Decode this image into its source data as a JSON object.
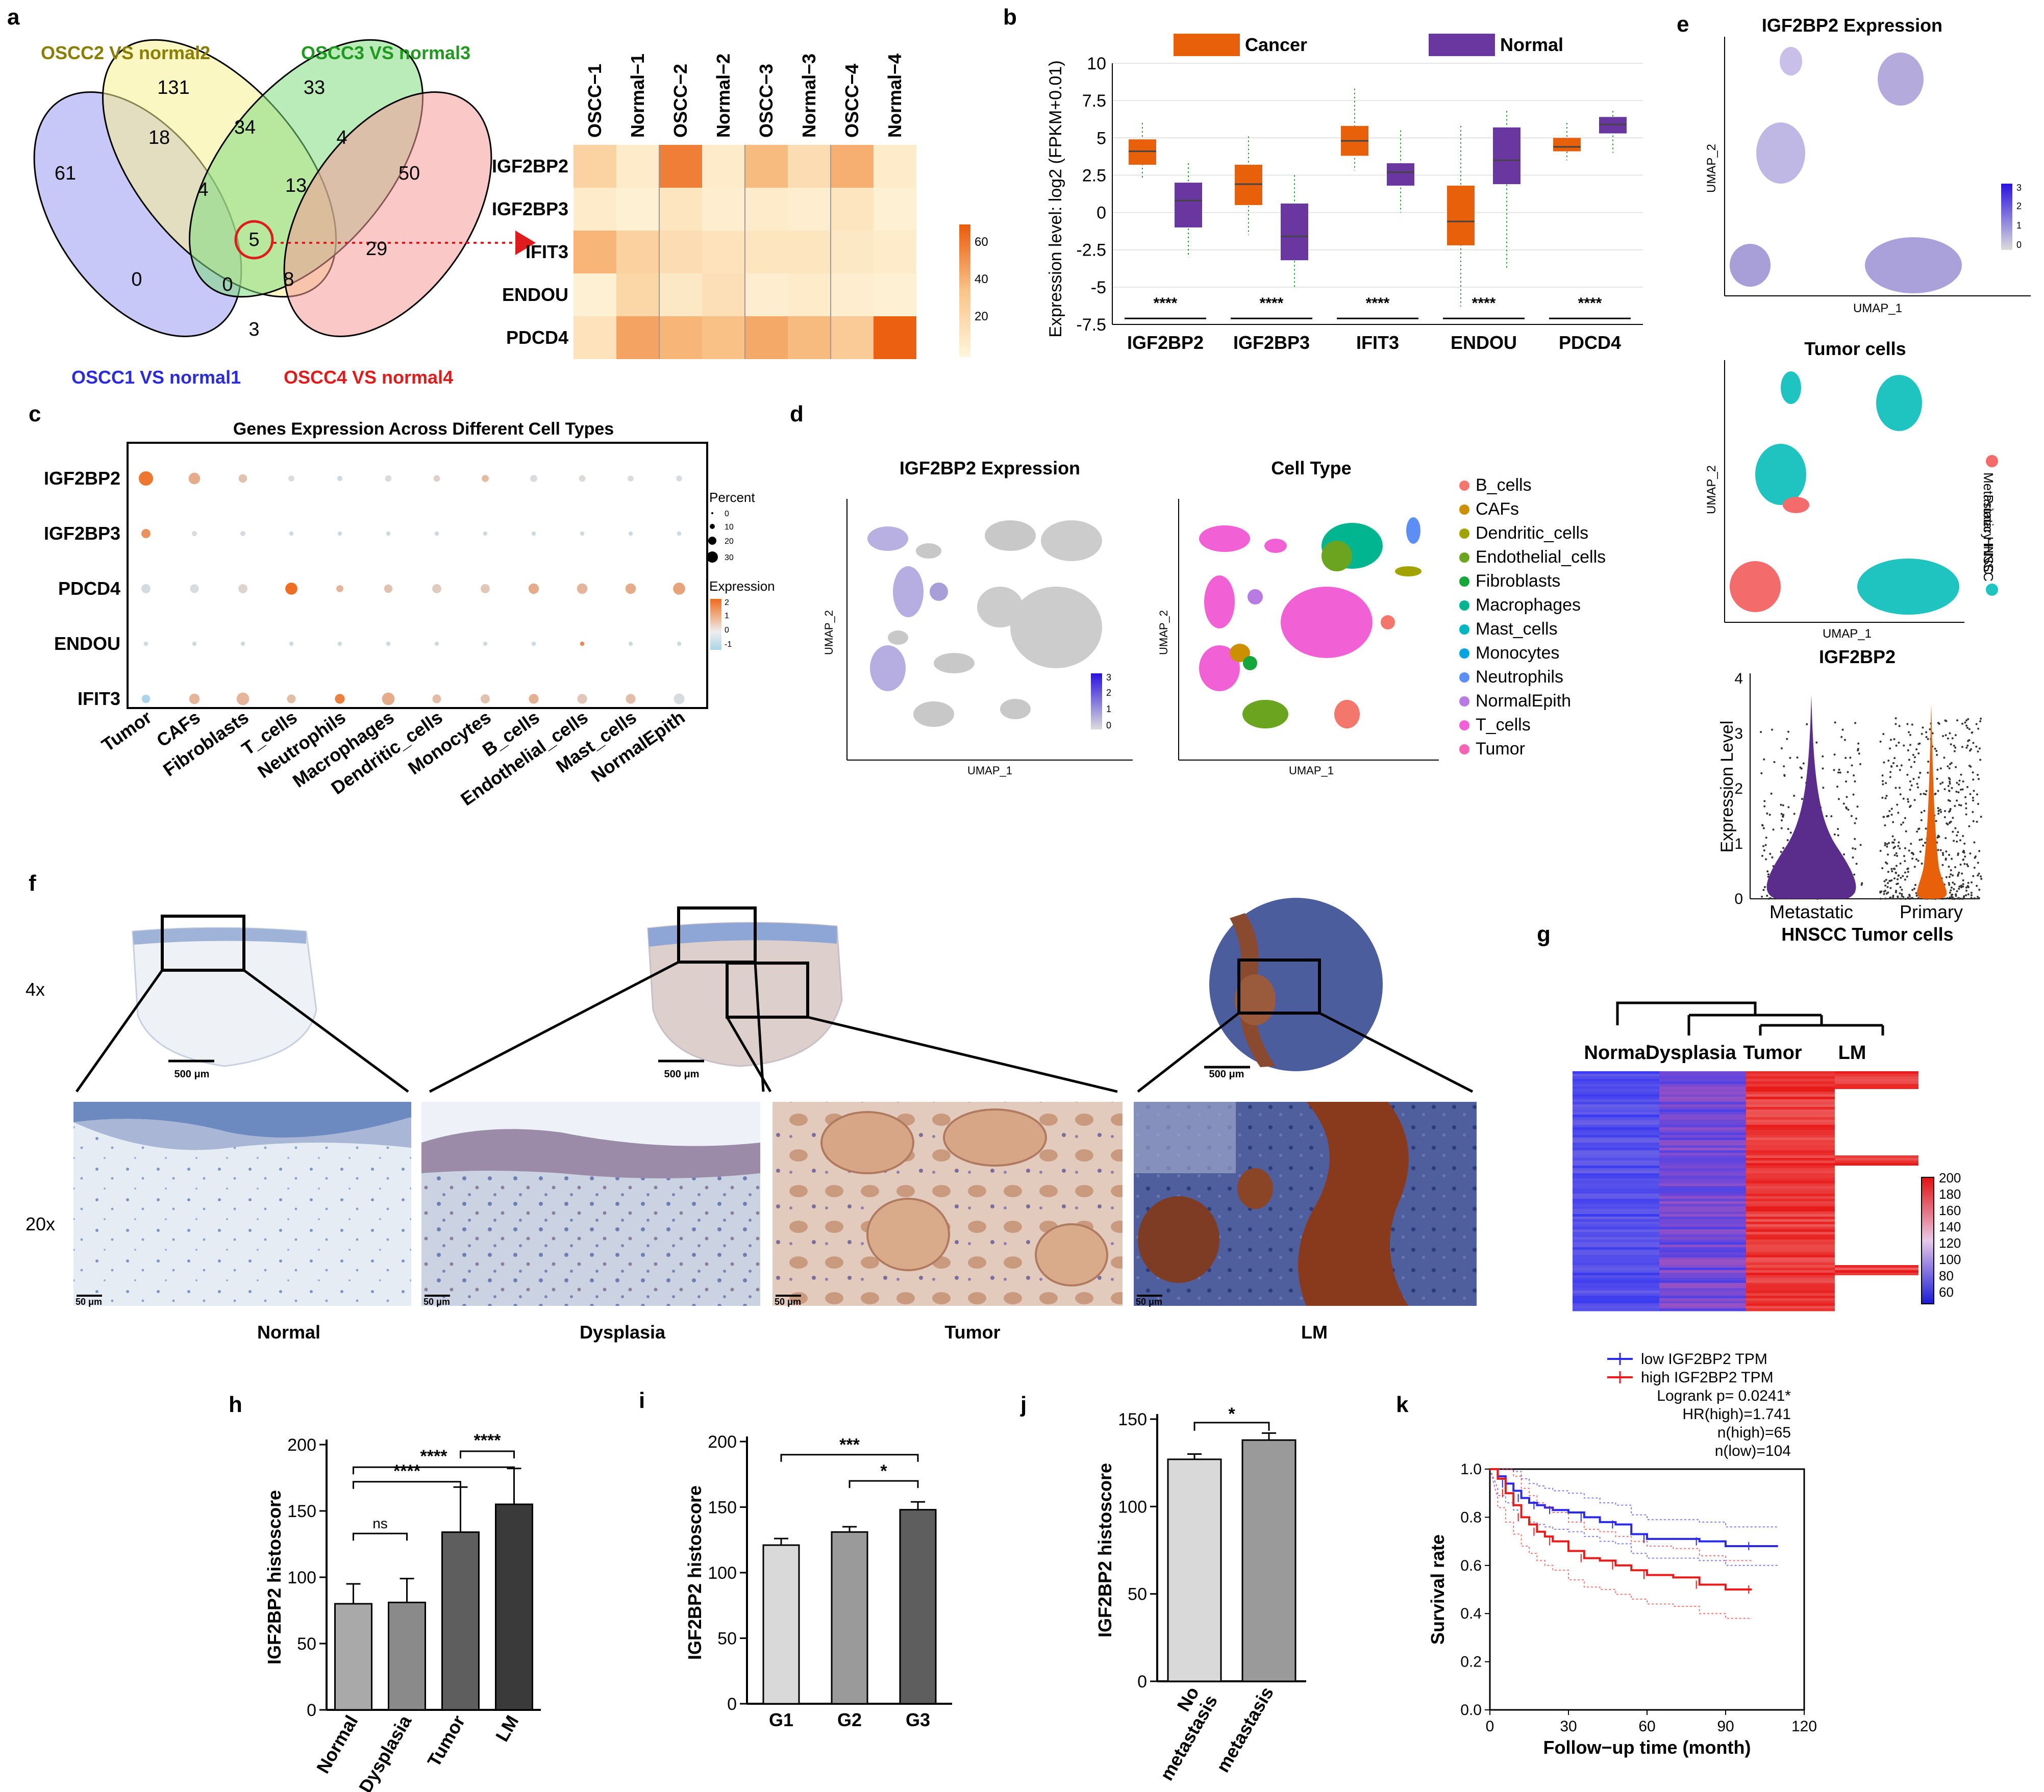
{
  "panel_labels": [
    "a",
    "b",
    "c",
    "d",
    "e",
    "f",
    "g",
    "h",
    "i",
    "j",
    "k"
  ],
  "panel_a": {
    "venn": {
      "sets": [
        "OSCC1 VS normal1",
        "OSCC2 VS normal2",
        "OSCC3 VS normal3",
        "OSCC4 VS normal4"
      ],
      "set_colors": [
        "#2b2bdc",
        "#8a7d00",
        "#1f9a1f",
        "#e01b1b"
      ],
      "counts": [
        "61",
        "131",
        "33",
        "50",
        "18",
        "34",
        "4",
        "4",
        "13",
        "5",
        "0",
        "0",
        "8",
        "29",
        "3"
      ]
    },
    "heatmap": {
      "columns": [
        "OSCC−1",
        "Normal−1",
        "OSCC−2",
        "Normal−2",
        "OSCC−3",
        "Normal−3",
        "OSCC−4",
        "Normal−4"
      ],
      "rows": [
        "IGF2BP2",
        "IGF2BP3",
        "IFIT3",
        "ENDOU",
        "PDCD4"
      ],
      "values": [
        [
          25,
          8,
          58,
          8,
          38,
          18,
          42,
          8
        ],
        [
          8,
          4,
          12,
          6,
          8,
          6,
          12,
          4
        ],
        [
          40,
          26,
          18,
          14,
          12,
          12,
          10,
          8
        ],
        [
          4,
          22,
          10,
          16,
          6,
          8,
          6,
          4
        ],
        [
          14,
          46,
          40,
          36,
          44,
          38,
          30,
          68
        ]
      ],
      "legend_ticks": [
        "60",
        "40",
        "20"
      ]
    }
  },
  "chart_data": [
    {
      "type": "box",
      "id": "b",
      "legend": [
        "Cancer",
        "Normal"
      ],
      "colors": [
        "#e8600a",
        "#6a36a0"
      ],
      "categories": [
        "IGF2BP2",
        "IGF2BP3",
        "IFIT3",
        "ENDOU",
        "PDCD4"
      ],
      "ylabel": "Expression level: log2 (FPKM+0.01)",
      "ylim": [
        -7.5,
        10
      ],
      "yticks": [
        "-7.5",
        "-5",
        "-2.5",
        "0",
        "2.5",
        "5",
        "7.5",
        "10"
      ],
      "series": [
        {
          "name": "Cancer",
          "boxes": [
            [
              2.3,
              3.2,
              4.1,
              4.9,
              6.0
            ],
            [
              -1.5,
              0.5,
              1.9,
              3.2,
              5.1
            ],
            [
              2.8,
              3.8,
              4.8,
              5.8,
              8.3
            ],
            [
              -6.3,
              -2.2,
              -0.6,
              1.8,
              5.8
            ],
            [
              3.5,
              4.1,
              4.4,
              5.0,
              6.0
            ]
          ]
        },
        {
          "name": "Normal",
          "boxes": [
            [
              -3.0,
              -1.0,
              0.8,
              2.0,
              3.3
            ],
            [
              -5.0,
              -3.2,
              -1.6,
              0.6,
              2.5
            ],
            [
              0.0,
              1.8,
              2.7,
              3.3,
              5.5
            ],
            [
              -3.8,
              1.9,
              3.5,
              5.7,
              6.8
            ],
            [
              4.0,
              5.3,
              5.9,
              6.4,
              6.8
            ]
          ]
        }
      ],
      "significance": [
        "****",
        "****",
        "****",
        "****",
        "****"
      ]
    },
    {
      "type": "dotplot",
      "id": "c",
      "title": "Genes Expression Across Different Cell Types",
      "genes": [
        "IGF2BP2",
        "IGF2BP3",
        "PDCD4",
        "ENDOU",
        "IFIT3"
      ],
      "cell_types": [
        "Tumor",
        "CAFs",
        "Fibroblasts",
        "T_cells",
        "Neutrophils",
        "Macrophages",
        "Dendritic_cells",
        "Monocytes",
        "B_cells",
        "Endothelial_cells",
        "Mast_cells",
        "NormalEpith"
      ],
      "percent": [
        [
          30,
          18,
          8,
          3,
          2,
          4,
          4,
          5,
          5,
          4,
          3,
          3
        ],
        [
          10,
          2,
          2,
          1,
          1,
          1,
          1,
          1,
          1,
          1,
          1,
          1
        ],
        [
          10,
          9,
          10,
          20,
          5,
          8,
          10,
          10,
          14,
          14,
          14,
          20
        ],
        [
          1,
          1,
          1,
          1,
          1,
          1,
          1,
          1,
          1,
          1,
          1,
          1
        ],
        [
          8,
          14,
          22,
          9,
          12,
          22,
          9,
          10,
          12,
          12,
          12,
          15
        ]
      ],
      "expression": [
        [
          2.2,
          1.0,
          0.5,
          -0.3,
          -0.5,
          -0.2,
          0.2,
          0.7,
          -0.2,
          0.0,
          -0.3,
          -0.3
        ],
        [
          1.6,
          -0.2,
          -0.3,
          -0.5,
          -0.5,
          -0.5,
          -0.5,
          -0.5,
          -0.5,
          -0.5,
          -0.5,
          -0.5
        ],
        [
          -0.4,
          -0.2,
          0.1,
          2.4,
          0.8,
          0.5,
          0.3,
          0.4,
          1.0,
          0.8,
          1.0,
          1.2
        ],
        [
          -0.5,
          -0.5,
          -0.5,
          -0.5,
          -0.5,
          -0.5,
          -0.5,
          -0.5,
          -0.5,
          1.8,
          -0.5,
          -0.5
        ],
        [
          -1.4,
          0.8,
          0.8,
          0.6,
          2.0,
          1.0,
          0.6,
          0.5,
          0.9,
          0.4,
          0.6,
          -0.3
        ]
      ],
      "legend_percent_title": "Percent",
      "legend_percent": [
        "0",
        "10",
        "20",
        "30"
      ],
      "legend_expr_title": "Expression",
      "legend_expr": [
        "2",
        "1",
        "0",
        "-1"
      ]
    },
    {
      "type": "bar",
      "id": "h",
      "categories": [
        "Normal",
        "Dysplasia",
        "Tumor",
        "LM"
      ],
      "values": [
        80,
        81,
        134,
        155
      ],
      "errors": [
        15,
        18,
        34,
        27
      ],
      "ylabel": "IGF2BP2 histoscore",
      "ylim": [
        0,
        200
      ],
      "yticks": [
        "0",
        "50",
        "100",
        "150",
        "200"
      ],
      "annotations": [
        "ns",
        "****",
        "****",
        "****"
      ]
    },
    {
      "type": "bar",
      "id": "i",
      "categories": [
        "G1",
        "G2",
        "G3"
      ],
      "values": [
        121,
        131,
        148
      ],
      "errors": [
        5,
        4,
        6
      ],
      "ylabel": "IGF2BP2 histoscore",
      "ylim": [
        0,
        200
      ],
      "yticks": [
        "0",
        "50",
        "100",
        "150",
        "200"
      ],
      "annotations": [
        "***",
        "*"
      ]
    },
    {
      "type": "bar",
      "id": "j",
      "categories": [
        "No metastasis",
        "metastasis"
      ],
      "values": [
        127,
        138
      ],
      "errors": [
        3,
        4
      ],
      "ylabel": "IGF2BP2 histoscore",
      "ylim": [
        0,
        150
      ],
      "yticks": [
        "0",
        "50",
        "100",
        "150"
      ],
      "annotations": [
        "*"
      ]
    },
    {
      "type": "line",
      "id": "k",
      "series": [
        {
          "name": "low IGF2BP2 TPM",
          "x": [
            0,
            3,
            6,
            9,
            12,
            15,
            18,
            21,
            24,
            30,
            36,
            42,
            48,
            54,
            60,
            70,
            80,
            90,
            100,
            110
          ],
          "y": [
            1.0,
            0.97,
            0.94,
            0.91,
            0.88,
            0.86,
            0.85,
            0.84,
            0.83,
            0.82,
            0.8,
            0.78,
            0.77,
            0.73,
            0.71,
            0.71,
            0.7,
            0.68,
            0.68,
            0.68
          ]
        },
        {
          "name": "high IGF2BP2 TPM",
          "x": [
            0,
            3,
            6,
            9,
            12,
            15,
            18,
            21,
            24,
            30,
            36,
            42,
            48,
            54,
            60,
            70,
            80,
            90,
            100
          ],
          "y": [
            1.0,
            0.96,
            0.9,
            0.85,
            0.8,
            0.77,
            0.74,
            0.72,
            0.7,
            0.66,
            0.63,
            0.62,
            0.6,
            0.58,
            0.56,
            0.55,
            0.52,
            0.5,
            0.5
          ]
        }
      ],
      "xlabel": "Follow−up time (month)",
      "ylabel": "Survival rate",
      "xlim": [
        0,
        120
      ],
      "ylim": [
        0,
        1.0
      ],
      "xticks": [
        "0",
        "30",
        "60",
        "90",
        "120"
      ],
      "yticks": [
        "0.0",
        "0.2",
        "0.4",
        "0.6",
        "0.8",
        "1.0"
      ],
      "stats": [
        "Logrank p= 0.0241*",
        "HR(high)=1.741",
        "n(high)=65",
        "n(low)=104"
      ]
    }
  ],
  "panel_d": {
    "title_left": "IGF2BP2 Expression",
    "title_right": "Cell Type",
    "xlabel": "UMAP_1",
    "ylabel": "UMAP_2",
    "scale_ticks": [
      "3",
      "2",
      "1",
      "0"
    ],
    "cell_types": [
      "B_cells",
      "CAFs",
      "Dendritic_cells",
      "Endothelial_cells",
      "Fibroblasts",
      "Macrophages",
      "Mast_cells",
      "Monocytes",
      "Neutrophils",
      "NormalEpith",
      "T_cells",
      "Tumor"
    ],
    "cell_colors": [
      "#f3776d",
      "#cc8f00",
      "#a3a300",
      "#6ba51f",
      "#17a63c",
      "#00b590",
      "#00b6c3",
      "#00a5e2",
      "#5c8ef5",
      "#b87ae3",
      "#f260d5",
      "#fb61b5"
    ]
  },
  "panel_e": {
    "top_title": "IGF2BP2 Expression",
    "mid_title": "Tumor cells",
    "xlabel": "UMAP_1",
    "ylabel": "UMAP_2",
    "scale_ticks": [
      "3",
      "2",
      "1",
      "0"
    ],
    "legend": [
      "Metastatic HNSC",
      "Primary HNSC"
    ],
    "legend_colors": [
      "#f36b6b",
      "#1fc3c0"
    ],
    "violin_title": "IGF2BP2",
    "violin_ylabel": "Expression Level",
    "violin_yticks": [
      "0",
      "1",
      "2",
      "3",
      "4"
    ],
    "violin_groups": [
      "Metastatic",
      "Primary"
    ],
    "violin_xlabel": "HNSCC Tumor cells"
  },
  "panel_f": {
    "magnifications": [
      "4x",
      "20x"
    ],
    "scale_large": "500 μm",
    "scale_small": "50 μm",
    "labels": [
      "Normal",
      "Dysplasia",
      "Tumor",
      "LM"
    ]
  },
  "panel_g": {
    "columns": [
      "Normal",
      "Dysplasia",
      "Tumor",
      "LM"
    ],
    "legend_ticks": [
      "200",
      "180",
      "160",
      "140",
      "120",
      "100",
      "80",
      "60"
    ]
  }
}
